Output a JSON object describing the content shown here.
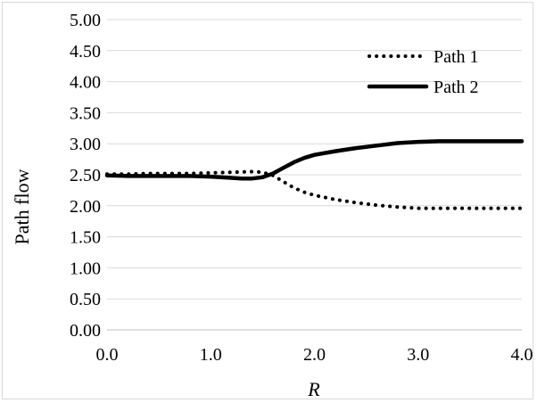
{
  "chart_data": {
    "type": "line",
    "title": "",
    "xlabel": "R",
    "ylabel": "Path flow",
    "xlim": [
      0.0,
      4.0
    ],
    "ylim": [
      0.0,
      5.0
    ],
    "x_ticks": [
      "0.0",
      "1.0",
      "2.0",
      "3.0",
      "4.0"
    ],
    "y_ticks": [
      "0.00",
      "0.50",
      "1.00",
      "1.50",
      "2.00",
      "2.50",
      "3.00",
      "3.50",
      "4.00",
      "4.50",
      "5.00"
    ],
    "grid": "horizontal",
    "legend_position": "top-right",
    "series": [
      {
        "name": "Path 1",
        "style": "dotted",
        "color": "#000000",
        "x": [
          0.0,
          0.2,
          0.4,
          0.6,
          0.8,
          1.0,
          1.2,
          1.4,
          1.5,
          1.6,
          1.7,
          1.8,
          1.9,
          2.0,
          2.2,
          2.4,
          2.6,
          2.8,
          3.0,
          3.2,
          3.4,
          3.6,
          3.8,
          4.0
        ],
        "y": [
          2.51,
          2.51,
          2.52,
          2.52,
          2.52,
          2.53,
          2.54,
          2.55,
          2.54,
          2.49,
          2.39,
          2.29,
          2.22,
          2.17,
          2.1,
          2.05,
          2.01,
          1.98,
          1.96,
          1.96,
          1.96,
          1.96,
          1.96,
          1.96
        ]
      },
      {
        "name": "Path 2",
        "style": "solid",
        "color": "#000000",
        "x": [
          0.0,
          0.2,
          0.4,
          0.6,
          0.8,
          1.0,
          1.2,
          1.3,
          1.4,
          1.5,
          1.6,
          1.7,
          1.8,
          1.9,
          2.0,
          2.2,
          2.4,
          2.6,
          2.8,
          3.0,
          3.2,
          3.4,
          3.6,
          3.8,
          4.0
        ],
        "y": [
          2.49,
          2.48,
          2.48,
          2.48,
          2.48,
          2.47,
          2.45,
          2.44,
          2.44,
          2.46,
          2.52,
          2.61,
          2.7,
          2.77,
          2.82,
          2.88,
          2.93,
          2.97,
          3.01,
          3.03,
          3.04,
          3.04,
          3.04,
          3.04,
          3.04
        ]
      }
    ]
  }
}
